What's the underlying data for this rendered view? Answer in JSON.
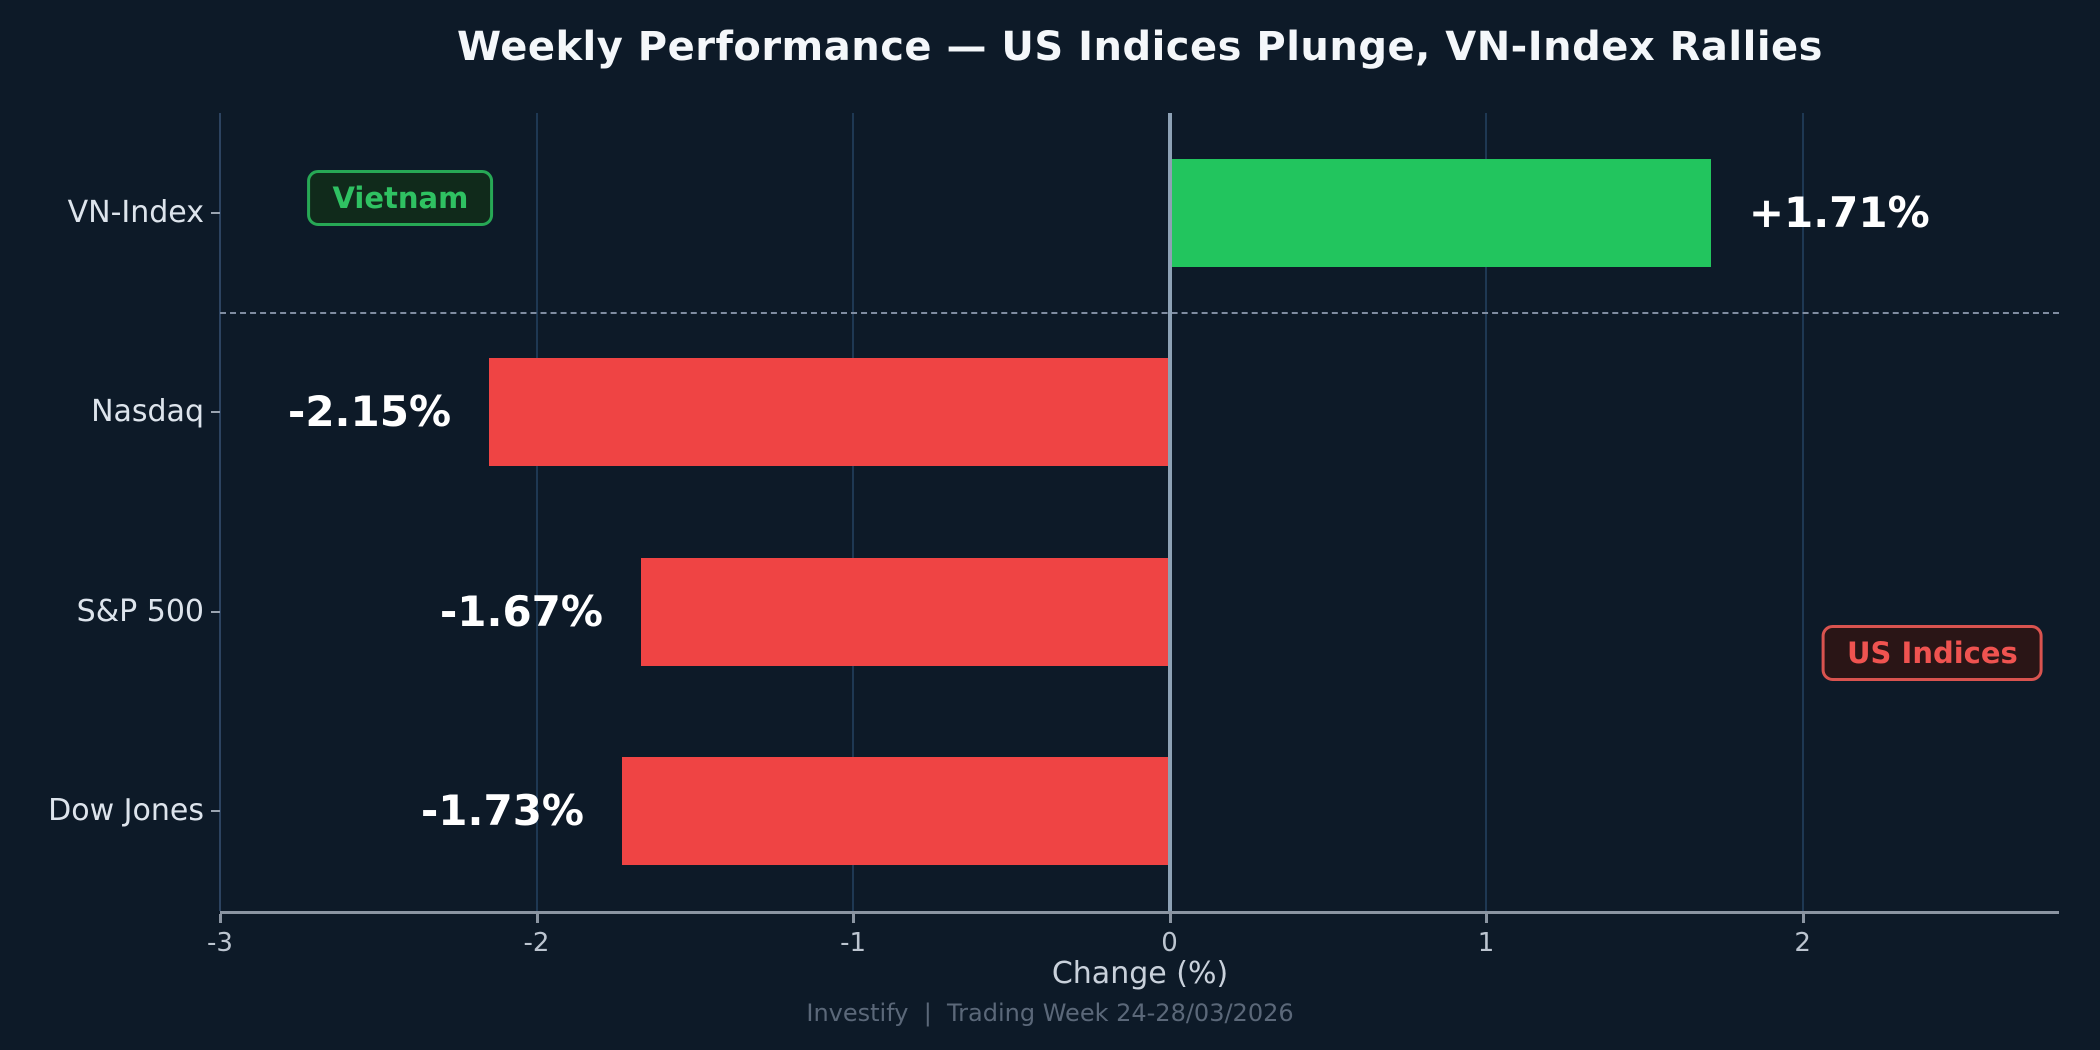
{
  "footer": {
    "text": "Investify  |  Trading Week 24-28/03/2026"
  },
  "colors": {
    "background": "#0d1a28",
    "positive": "#22c55e",
    "negative": "#ef4444",
    "grid": "#1e3853",
    "spine": "#2c4360",
    "zero_line": "#8da1b5",
    "axis_line": "#8b95a2",
    "tick_mark": "#8b95a2",
    "y_tick_mark": "#9aa4b0",
    "separator": "#7f8ca0",
    "title_text": "#f4f7fa",
    "value_text": "#ffffff",
    "category_text": "#dde4ec",
    "tick_text": "#bcc5d0",
    "xlabel_text": "#c9d1db",
    "footer_text": "#5b6879"
  },
  "chart_data": {
    "type": "bar",
    "orientation": "horizontal",
    "title": "Weekly Performance — US Indices Plunge, VN-Index Rallies",
    "xlabel": "Change (%)",
    "categories": [
      "VN-Index",
      "Nasdaq",
      "S&P 500",
      "Dow Jones"
    ],
    "values": [
      1.71,
      -2.15,
      -1.67,
      -1.73
    ],
    "value_labels": [
      "+1.71%",
      "-2.15%",
      "-1.67%",
      "-1.73%"
    ],
    "xlim": [
      -3,
      2.81
    ],
    "xticks": [
      -3,
      -2,
      -1,
      0,
      1,
      2
    ],
    "xtick_labels": [
      "-3",
      "-2",
      "-1",
      "0",
      "1",
      "2"
    ],
    "grid": "vertical",
    "legend_position": "none",
    "separator_after_index": 0,
    "annotations": [
      {
        "label": "Vietnam",
        "x": -2.43,
        "row": 0,
        "dy": -15,
        "text_color": "#2fc162",
        "border_color": "#27a855",
        "bg_color": "#102a1b"
      },
      {
        "label": "US Indices",
        "x": 2.41,
        "row": 2,
        "dy": 41,
        "text_color": "#ef5350",
        "border_color": "#d9534f",
        "bg_color": "#2a1516"
      }
    ]
  }
}
